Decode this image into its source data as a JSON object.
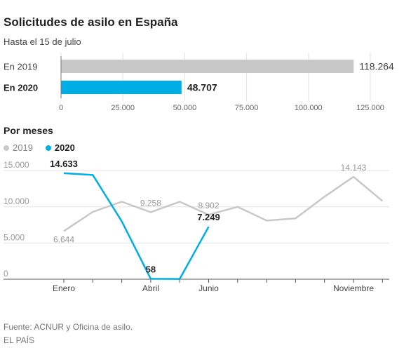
{
  "title": "Solicitudes de asilo en España",
  "subtitle": "Hasta el 15 de julio",
  "section_title": "Por meses",
  "source": "Fuente: ACNUR y Oficina de asilo.",
  "credit": "EL PAÍS",
  "colors": {
    "y2019": "#c8c8c8",
    "y2020": "#00aee6",
    "grid": "#e3e3e3",
    "axis": "#555555"
  },
  "chart_data": [
    {
      "type": "bar",
      "orientation": "horizontal",
      "categories": [
        "En 2019",
        "En 2020"
      ],
      "values": [
        118264,
        48707
      ],
      "value_labels": [
        "118.264",
        "48.707"
      ],
      "xlim": [
        0,
        125000
      ],
      "xticks": [
        0,
        25000,
        50000,
        75000,
        100000,
        125000
      ],
      "xtick_labels": [
        "0",
        "25.000",
        "50.000",
        "75.000",
        "100.000",
        "125.000"
      ]
    },
    {
      "type": "line",
      "legend": [
        "2019",
        "2020"
      ],
      "legend_position": "top-left",
      "x_count": 12,
      "x_tick_labels": [
        {
          "index": 0,
          "label": "Enero"
        },
        {
          "index": 3,
          "label": "Abril"
        },
        {
          "index": 5,
          "label": "Junio"
        },
        {
          "index": 10,
          "label": "Noviembre"
        }
      ],
      "ylim": [
        0,
        15500
      ],
      "yticks": [
        0,
        5000,
        10000,
        15000
      ],
      "ytick_labels": [
        "0",
        "5.000",
        "10.000",
        "15.000"
      ],
      "series": [
        {
          "name": "2019",
          "values": [
            6644,
            9300,
            10700,
            9258,
            10700,
            8902,
            10000,
            8100,
            8400,
            11400,
            14143,
            10800
          ],
          "labels": [
            {
              "index": 0,
              "text": "6.644",
              "pos": "below"
            },
            {
              "index": 3,
              "text": "9.258",
              "pos": "above"
            },
            {
              "index": 5,
              "text": "8.902",
              "pos": "above"
            },
            {
              "index": 10,
              "text": "14.143",
              "pos": "above"
            }
          ]
        },
        {
          "name": "2020",
          "values": [
            14633,
            14400,
            8000,
            58,
            40,
            7249
          ],
          "labels": [
            {
              "index": 0,
              "text": "14.633",
              "pos": "above"
            },
            {
              "index": 3,
              "text": "58",
              "pos": "above"
            },
            {
              "index": 5,
              "text": "7.249",
              "pos": "above"
            }
          ]
        }
      ]
    }
  ]
}
